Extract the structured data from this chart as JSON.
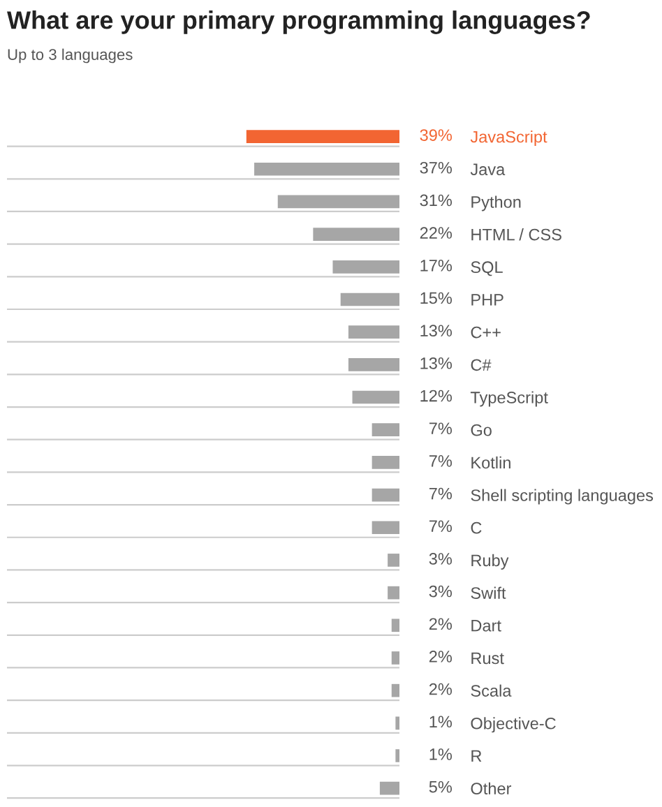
{
  "chart_data": {
    "type": "bar",
    "orientation": "horizontal",
    "title": "What are your primary programming languages?",
    "subtitle": "Up to 3 languages",
    "categories": [
      "JavaScript",
      "Java",
      "Python",
      "HTML / CSS",
      "SQL",
      "PHP",
      "C++",
      "C#",
      "TypeScript",
      "Go",
      "Kotlin",
      "Shell scripting languages",
      "C",
      "Ruby",
      "Swift",
      "Dart",
      "Rust",
      "Scala",
      "Objective-C",
      "R",
      "Other"
    ],
    "values": [
      39,
      37,
      31,
      22,
      17,
      15,
      13,
      13,
      12,
      7,
      7,
      7,
      7,
      3,
      3,
      2,
      2,
      2,
      1,
      1,
      5
    ],
    "value_labels": [
      "39%",
      "37%",
      "31%",
      "22%",
      "17%",
      "15%",
      "13%",
      "13%",
      "12%",
      "7%",
      "7%",
      "7%",
      "7%",
      "3%",
      "3%",
      "2%",
      "2%",
      "2%",
      "1%",
      "1%",
      "5%"
    ],
    "colors": [
      "#f26532",
      "#a6a6a6",
      "#a6a6a6",
      "#a6a6a6",
      "#a6a6a6",
      "#a6a6a6",
      "#a6a6a6",
      "#a6a6a6",
      "#a6a6a6",
      "#a6a6a6",
      "#a6a6a6",
      "#a6a6a6",
      "#a6a6a6",
      "#a6a6a6",
      "#a6a6a6",
      "#a6a6a6",
      "#a6a6a6",
      "#a6a6a6",
      "#a6a6a6",
      "#a6a6a6",
      "#a6a6a6"
    ],
    "xlim": [
      100,
      0
    ],
    "grid": "y",
    "tick_labels": "y",
    "legend": false
  }
}
